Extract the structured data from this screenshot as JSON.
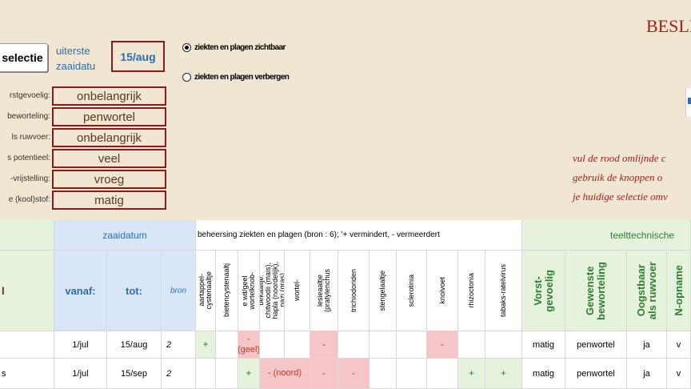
{
  "toolbar": {
    "selection_button": "selectie",
    "date_label": "uiterste zaaidatu",
    "date_value": "15/aug"
  },
  "radios": [
    {
      "label": "ziekten en plagen zichtbaar",
      "selected": true
    },
    {
      "label": "ziekten en plagen verbergen",
      "selected": false
    }
  ],
  "filters": [
    {
      "label": "rstgevoelig:",
      "value": "onbelangrijk"
    },
    {
      "label": "beworteling:",
      "value": "penwortel"
    },
    {
      "label": "ls ruwvoer:",
      "value": "onbelangrijk"
    },
    {
      "label": "s potentieel:",
      "value": "veel"
    },
    {
      "label": "-vrijstelling:",
      "value": "vroeg"
    },
    {
      "label": "e (kool)stof:",
      "value": "matig"
    }
  ],
  "title": "BESLIS",
  "instructions": [
    "vul de rood omlijnde c",
    "gebruik de knoppen o",
    "je huidige selectie omv"
  ],
  "table": {
    "group_zaaidatum": "zaaidatum",
    "group_ziekten": "beheersing ziekten en plagen (bron : 6); '+ vermindert, - vermeerdert",
    "group_teelt": "teelttechnische",
    "col_vanaf": "vanaf:",
    "col_tot": "tot:",
    "col_bron": "bron",
    "left_header": "l",
    "disease_cols": [
      "aartappel-\ncystenaaltje",
      "bietencystenaaltj",
      "e wit/geel\nwortelknob-",
      "bekaaltje:\nchitwoodii (mais),\nhapla (noordelijk),\nnazi (gras)",
      "wortel-",
      "lesieaaltje\n(pratylenchus",
      "trichiodoriden",
      "stengelaaltje",
      "sclerotinia",
      "knolvoet",
      "rhizoctonia",
      "tabaks-ratelvirus"
    ],
    "teelt_cols": [
      "Vorst-\ngevoelig",
      "Gewenste\nbeworteling",
      "Oogstbaar\nals ruwvoer",
      "N-opname"
    ],
    "rows": [
      {
        "name": "",
        "vanaf": "1/jul",
        "tot": "15/aug",
        "bron": "2",
        "diseases": [
          "+",
          "",
          "-\n(geel)",
          "",
          "",
          "-",
          "",
          "",
          "",
          "-",
          "",
          ""
        ],
        "teelt": [
          "matig",
          "penwortel",
          "ja",
          "v"
        ]
      },
      {
        "name": "s",
        "vanaf": "1/jul",
        "tot": "15/sep",
        "bron": "2",
        "diseases": [
          "",
          "",
          "+",
          "- (noord)",
          "",
          "-",
          "-",
          "",
          "",
          "",
          "+",
          "+"
        ],
        "teelt": [
          "matig",
          "penwortel",
          "ja",
          "v"
        ]
      }
    ]
  }
}
